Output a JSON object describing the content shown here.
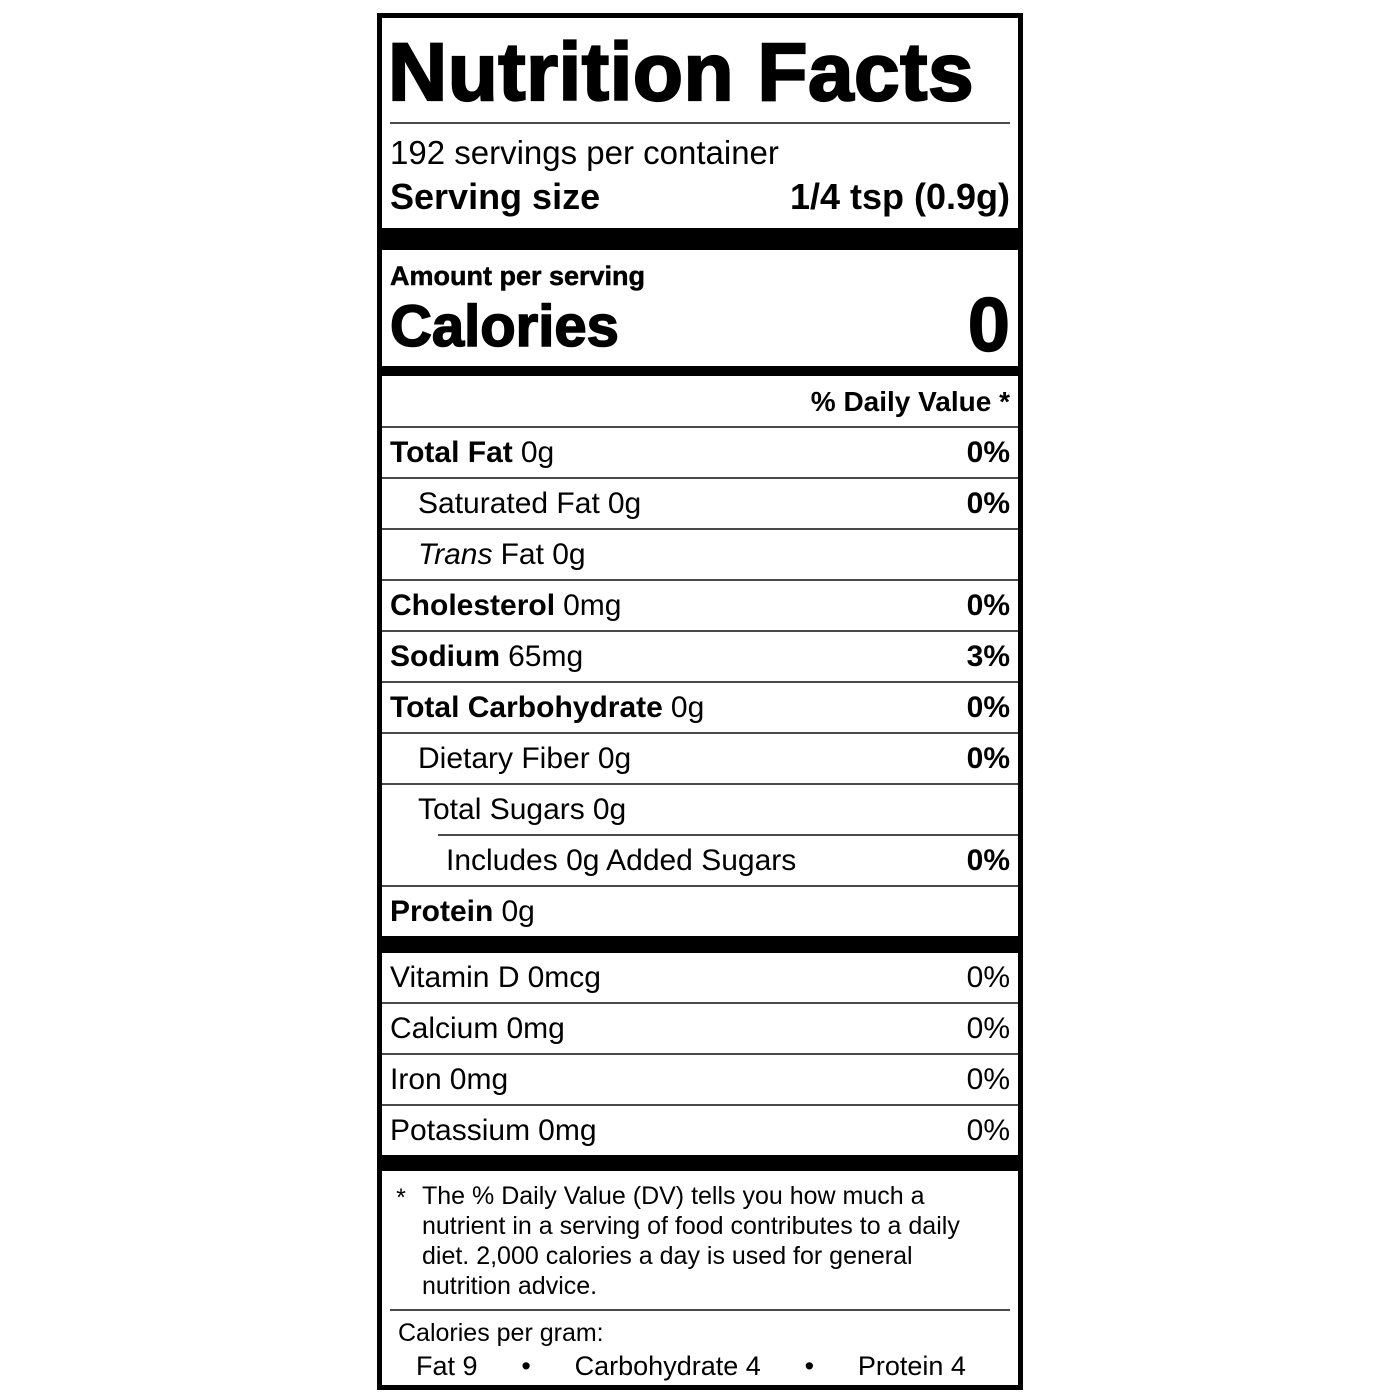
{
  "colors": {
    "ink": "#000000",
    "paper": "#ffffff"
  },
  "label": {
    "title": "Nutrition Facts",
    "servings_per_container": "192 servings per container",
    "serving_size": {
      "label": "Serving size",
      "value": "1/4 tsp (0.9g)"
    },
    "amount_per_serving": "Amount per serving",
    "calories": {
      "label": "Calories",
      "value": "0"
    },
    "daily_value_header": "% Daily Value *",
    "nutrients": [
      {
        "name": "Total Fat",
        "amount": "0g",
        "dv": "0%"
      },
      {
        "name": "Saturated Fat",
        "amount": "0g",
        "dv": "0%"
      },
      {
        "name": "Trans",
        "amount": "Fat 0g",
        "dv": ""
      },
      {
        "name": "Cholesterol",
        "amount": "0mg",
        "dv": "0%"
      },
      {
        "name": "Sodium",
        "amount": "65mg",
        "dv": "3%"
      },
      {
        "name": "Total Carbohydrate",
        "amount": "0g",
        "dv": "0%"
      },
      {
        "name": "Dietary Fiber",
        "amount": "0g",
        "dv": "0%"
      },
      {
        "name": "Total Sugars",
        "amount": "0g",
        "dv": ""
      },
      {
        "name": "Includes 0g Added Sugars",
        "amount": "",
        "dv": "0%"
      },
      {
        "name": "Protein",
        "amount": "0g",
        "dv": ""
      }
    ],
    "micronutrients": [
      {
        "name": "Vitamin D",
        "amount": "0mcg",
        "dv": "0%"
      },
      {
        "name": "Calcium",
        "amount": "0mg",
        "dv": "0%"
      },
      {
        "name": "Iron",
        "amount": "0mg",
        "dv": "0%"
      },
      {
        "name": "Potassium",
        "amount": "0mg",
        "dv": "0%"
      }
    ],
    "footnote": {
      "marker": "*",
      "text": "The % Daily Value (DV) tells you how much a nutrient in a serving of food contributes to a daily diet. 2,000 calories a day is used for general nutrition advice."
    },
    "calories_per_gram": {
      "label": "Calories per gram:",
      "separator": "•",
      "items": [
        "Fat 9",
        "Carbohydrate 4",
        "Protein 4"
      ]
    }
  }
}
